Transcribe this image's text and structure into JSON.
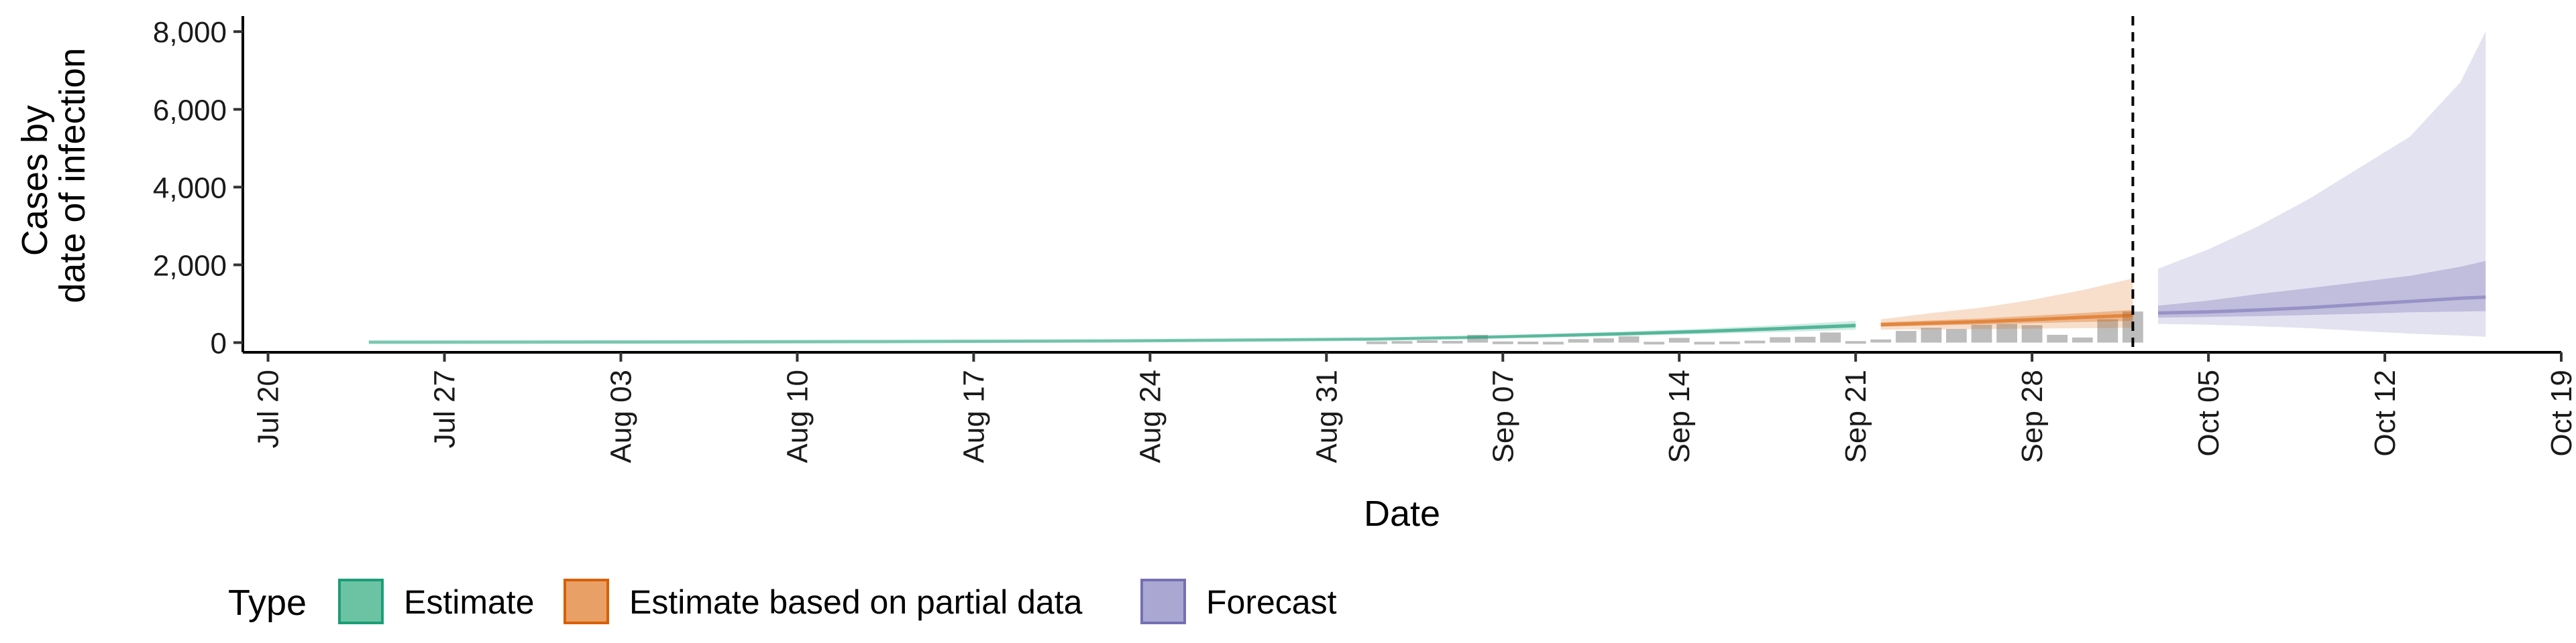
{
  "chart_data": {
    "type": "area",
    "title": "",
    "xlabel": "Date",
    "ylabel_lines": [
      "Cases by",
      "date of infection"
    ],
    "xlim_days": [
      0,
      92
    ],
    "x_origin_date": "2020-07-19",
    "ylim": [
      -250,
      8400
    ],
    "y_ticks": [
      0,
      2000,
      4000,
      6000,
      8000
    ],
    "y_tick_labels": [
      "0",
      "2,000",
      "4,000",
      "6,000",
      "8,000"
    ],
    "x_ticks": [
      1,
      8,
      15,
      22,
      29,
      36,
      43,
      50,
      57,
      64,
      71,
      78,
      85,
      92
    ],
    "x_tick_labels": [
      "Jul 20",
      "Jul 27",
      "Aug 03",
      "Aug 10",
      "Aug 17",
      "Aug 24",
      "Aug 31",
      "Sep 07",
      "Sep 14",
      "Sep 21",
      "Sep 28",
      "Oct 05",
      "Oct 12",
      "Oct 19"
    ],
    "vline_day": 75,
    "grid": false,
    "legend": {
      "title": "Type",
      "position": "bottom",
      "entries": [
        {
          "label": "Estimate",
          "fill": "#6cc3a3",
          "stroke": "#1b9e77"
        },
        {
          "label": "Estimate based on partial data",
          "fill": "#e9a066",
          "stroke": "#d95f02"
        },
        {
          "label": "Forecast",
          "fill": "#aaa8d2",
          "stroke": "#7570b3"
        }
      ]
    },
    "observed_cases": {
      "color": "#bdbdbd",
      "x": [
        45,
        46,
        47,
        48,
        49,
        50,
        51,
        52,
        53,
        54,
        55,
        56,
        57,
        58,
        59,
        60,
        61,
        62,
        63,
        64,
        65,
        66,
        67,
        68,
        69,
        70,
        71,
        72,
        73,
        74,
        75
      ],
      "values": [
        30,
        40,
        60,
        45,
        200,
        30,
        25,
        20,
        90,
        110,
        160,
        20,
        120,
        20,
        30,
        50,
        140,
        150,
        260,
        40,
        80,
        300,
        380,
        350,
        460,
        480,
        450,
        200,
        130,
        600,
        800
      ]
    },
    "series": [
      {
        "name": "Estimate",
        "color": "#1b9e77",
        "x": [
          5,
          15,
          25,
          35,
          45,
          50,
          55,
          58,
          61,
          64
        ],
        "median": [
          10,
          15,
          25,
          45,
          90,
          150,
          230,
          290,
          360,
          440
        ],
        "lower_50": [
          8,
          13,
          22,
          40,
          80,
          135,
          200,
          255,
          320,
          390
        ],
        "upper_50": [
          12,
          17,
          28,
          50,
          100,
          165,
          260,
          325,
          400,
          490
        ],
        "lower_90": [
          5,
          10,
          18,
          33,
          70,
          115,
          175,
          220,
          270,
          330
        ],
        "upper_90": [
          15,
          20,
          32,
          57,
          112,
          185,
          290,
          360,
          450,
          560
        ]
      },
      {
        "name": "Estimate based on partial data",
        "color": "#d95f02",
        "x": [
          65,
          67,
          69,
          71,
          73,
          75
        ],
        "median": [
          460,
          500,
          540,
          590,
          650,
          700
        ],
        "lower_50": [
          410,
          440,
          470,
          500,
          530,
          560
        ],
        "upper_50": [
          520,
          570,
          620,
          690,
          760,
          840
        ],
        "lower_90": [
          330,
          340,
          350,
          360,
          370,
          380
        ],
        "upper_90": [
          600,
          760,
          900,
          1100,
          1350,
          1650
        ]
      },
      {
        "name": "Forecast",
        "color": "#7570b3",
        "x": [
          76,
          78,
          80,
          82,
          84,
          86,
          88,
          89
        ],
        "median": [
          760,
          790,
          840,
          900,
          980,
          1060,
          1140,
          1170
        ],
        "lower_50": [
          640,
          660,
          680,
          710,
          740,
          780,
          800,
          810
        ],
        "upper_50": [
          950,
          1080,
          1250,
          1400,
          1560,
          1720,
          1950,
          2100
        ],
        "lower_90": [
          480,
          460,
          420,
          370,
          300,
          230,
          180,
          150
        ],
        "upper_90": [
          1900,
          2400,
          3000,
          3700,
          4500,
          5300,
          6700,
          8000
        ]
      }
    ]
  }
}
